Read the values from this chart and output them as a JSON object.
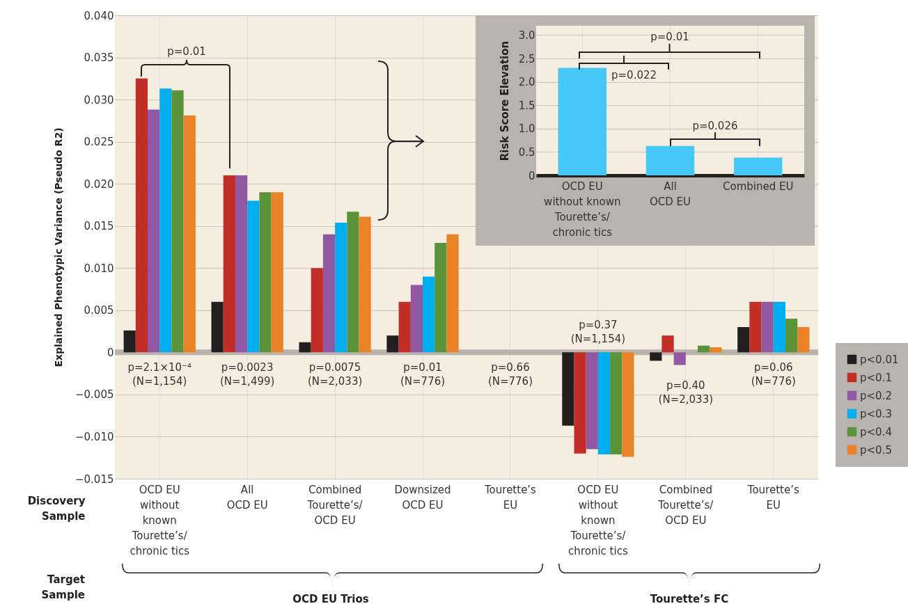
{
  "chart_data": [
    {
      "type": "bar",
      "ylabel": "Explained Phenotypic Variance (Pseudo R2)",
      "xlabel": "Discovery Sample",
      "categories": [
        "OCD EU\nwithout\nknown\nTourette’s/\nchronic tics",
        "All\nOCD EU",
        "Combined\nTourette’s/\nOCD EU",
        "Downsized\nOCD EU",
        "Tourette’s\nEU",
        "OCD EU\nwithout\nknown\nTourette’s/\nchronic tics",
        "Combined\nTourette’s/\nOCD EU",
        "Tourette’s\nEU"
      ],
      "series": [
        {
          "name": "p<0.01",
          "color": "#231f20",
          "values": [
            0.0026,
            0.006,
            0.0012,
            0.002,
            0,
            -0.0087,
            -0.001,
            0.003
          ]
        },
        {
          "name": "p<0.1",
          "color": "#c12e27",
          "values": [
            0.0325,
            0.021,
            0.01,
            0.006,
            0,
            -0.012,
            0.002,
            0.006
          ]
        },
        {
          "name": "p<0.2",
          "color": "#9159a3",
          "values": [
            0.0288,
            0.021,
            0.014,
            0.008,
            0,
            -0.0115,
            -0.0015,
            0.006
          ]
        },
        {
          "name": "p<0.3",
          "color": "#00adee",
          "values": [
            0.0313,
            0.018,
            0.0154,
            0.009,
            0,
            -0.0121,
            0,
            0.006
          ]
        },
        {
          "name": "p<0.4",
          "color": "#5b933b",
          "values": [
            0.0311,
            0.019,
            0.0167,
            0.013,
            0,
            -0.0121,
            0.0008,
            0.004
          ]
        },
        {
          "name": "p<0.5",
          "color": "#e98325",
          "values": [
            0.0281,
            0.019,
            0.0161,
            0.014,
            0,
            -0.0124,
            0.0006,
            0.003
          ]
        }
      ],
      "ylim": [
        -0.015,
        0.04
      ],
      "yticks": [
        {
          "value": -0.015,
          "label": "−0.015"
        },
        {
          "value": -0.01,
          "label": "−0.010"
        },
        {
          "value": -0.005,
          "label": "−0.005"
        },
        0,
        {
          "value": 0.005,
          "label": "0.005"
        },
        {
          "value": 0.01,
          "label": "0.010"
        },
        {
          "value": 0.015,
          "label": "0.015"
        },
        {
          "value": 0.02,
          "label": "0.020"
        },
        {
          "value": 0.025,
          "label": "0.025"
        },
        {
          "value": 0.03,
          "label": "0.030"
        },
        {
          "value": 0.035,
          "label": "0.035"
        },
        {
          "value": 0.04,
          "label": "0.040"
        }
      ],
      "grid": true,
      "legend": "bottom right",
      "ref_lines": [
        {
          "axis": "y",
          "value": 0,
          "color": "#b8b3ad"
        }
      ],
      "annotations": [
        "p=2.1×10⁻⁴\n(N=1,154)",
        "p=0.0023\n(N=1,499)",
        "p=0.0075\n(N=2,033)",
        "p=0.01\n(N=776)",
        "p=0.66\n(N=776)",
        "p=0.37\n(N=1,154)",
        "p=0.40\n(N=2,033)",
        "p=0.06\n(N=776)",
        "p=0.01",
        "Target Sample",
        "OCD EU Trios",
        "Tourette’s FC"
      ]
    },
    {
      "type": "bar",
      "ylabel": "Risk Score Elevation",
      "categories": [
        "OCD EU\nwithout known\nTourette’s/\nchronic tics",
        "All\nOCD EU",
        "Combined EU"
      ],
      "values": [
        2.3,
        0.63,
        0.38
      ],
      "color": "#45c8f5",
      "ylim": [
        0,
        3.2
      ],
      "yticks": [
        0,
        0.5,
        {
          "value": 1,
          "label": "1.0"
        },
        1.5,
        {
          "value": 2,
          "label": "2.0"
        },
        2.5,
        {
          "value": 3,
          "label": "3.0"
        }
      ],
      "grid": true,
      "annotations": [
        "p=0.01",
        "p=0.022",
        "p=0.026"
      ]
    }
  ]
}
